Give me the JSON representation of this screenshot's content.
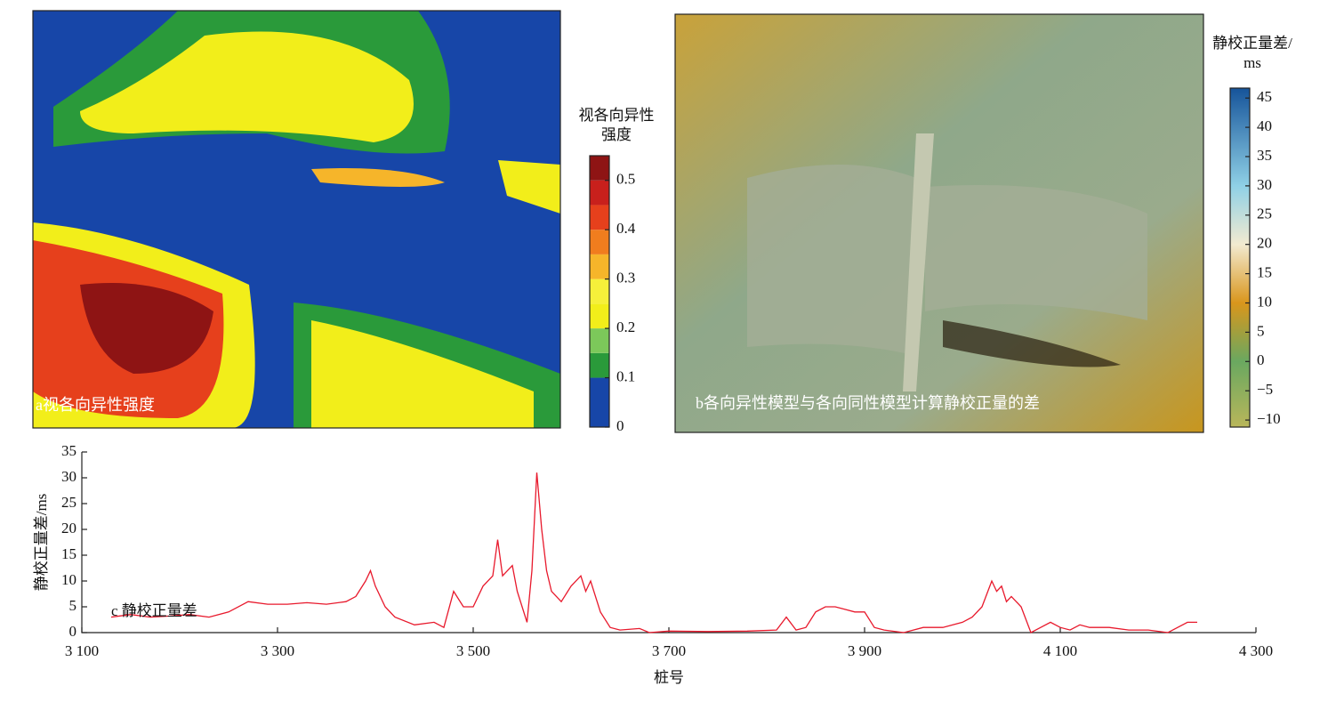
{
  "chart_data": [
    {
      "type": "map",
      "label": "a视各向异性强度",
      "colorbar": {
        "title": [
          "视各向异性",
          "强度"
        ],
        "clim": [
          0,
          0.55
        ],
        "bounds": [
          0,
          0.1,
          0.15,
          0.2,
          0.25,
          0.3,
          0.35,
          0.4,
          0.45,
          0.5,
          0.55
        ],
        "colors": [
          "#1746a8",
          "#2a9a3a",
          "#7cc85a",
          "#f2ee1a",
          "#f6f03a",
          "#f6b52a",
          "#f07d1e",
          "#e6401c",
          "#c8201c",
          "#8e1414"
        ],
        "ticks": [
          0,
          0.1,
          0.2,
          0.3,
          0.4,
          0.5
        ]
      }
    },
    {
      "type": "map",
      "label": "b各向异性模型与各向同性模型计算静校正量的差",
      "colorbar": {
        "title": [
          "静校正量差/",
          "ms"
        ],
        "clim": [
          -11.2,
          46.7
        ],
        "stops": [
          {
            "value": -11.2,
            "color": "#b9b65a"
          },
          {
            "value": 0,
            "color": "#6aa860"
          },
          {
            "value": 10,
            "color": "#d9961c"
          },
          {
            "value": 20,
            "color": "#f2ead0"
          },
          {
            "value": 30,
            "color": "#8fd0e6"
          },
          {
            "value": 46.7,
            "color": "#16549a"
          }
        ],
        "ticks": [
          45,
          40,
          35,
          30,
          25,
          20,
          15,
          10,
          5,
          0,
          {
            "value": -5,
            "label": "−5"
          },
          {
            "value": -10,
            "label": "−10"
          }
        ]
      }
    },
    {
      "type": "line",
      "annotation": "c 静校正量差",
      "x_label": "桩号",
      "y_label": "静校正量差/ms",
      "xlim": [
        3100,
        4300
      ],
      "ylim": [
        0,
        35
      ],
      "xticks": [
        {
          "value": 3100,
          "label": "3 100"
        },
        {
          "value": 3300,
          "label": "3 300"
        },
        {
          "value": 3500,
          "label": "3 500"
        },
        {
          "value": 3700,
          "label": "3 700"
        },
        {
          "value": 3900,
          "label": "3 900"
        },
        {
          "value": 4100,
          "label": "4 100"
        },
        {
          "value": 4300,
          "label": "4 300"
        }
      ],
      "yticks": [
        0,
        5,
        10,
        15,
        20,
        25,
        30,
        35
      ],
      "x": [
        3130,
        3150,
        3170,
        3190,
        3210,
        3230,
        3250,
        3270,
        3290,
        3310,
        3330,
        3350,
        3370,
        3380,
        3390,
        3395,
        3400,
        3410,
        3420,
        3440,
        3460,
        3470,
        3480,
        3490,
        3500,
        3510,
        3520,
        3525,
        3530,
        3540,
        3545,
        3550,
        3555,
        3560,
        3565,
        3570,
        3575,
        3580,
        3590,
        3600,
        3610,
        3615,
        3620,
        3630,
        3640,
        3650,
        3670,
        3680,
        3700,
        3740,
        3780,
        3810,
        3820,
        3830,
        3840,
        3850,
        3860,
        3870,
        3880,
        3890,
        3900,
        3910,
        3920,
        3940,
        3960,
        3980,
        4000,
        4010,
        4020,
        4030,
        4035,
        4040,
        4045,
        4050,
        4060,
        4070,
        4080,
        4090,
        4100,
        4110,
        4120,
        4130,
        4150,
        4170,
        4190,
        4210,
        4220,
        4230,
        4240
      ],
      "series": [
        {
          "name": "静校正量差",
          "color": "#e8192c",
          "values": [
            3,
            3.5,
            3,
            3.2,
            3.5,
            3,
            4,
            6,
            5.5,
            5.5,
            5.8,
            5.5,
            6,
            7,
            10,
            12,
            9,
            5,
            3,
            1.5,
            2,
            1,
            8,
            5,
            5,
            9,
            11,
            18,
            11,
            13,
            8,
            5,
            2,
            12,
            31,
            20,
            12,
            8,
            6,
            9,
            11,
            8,
            10,
            4,
            1,
            0.5,
            0.8,
            0,
            0.3,
            0.2,
            0.3,
            0.5,
            3,
            0.5,
            1,
            4,
            5,
            5,
            4.5,
            4,
            4,
            1,
            0.5,
            0,
            1,
            1,
            2,
            3,
            5,
            10,
            8,
            9,
            6,
            7,
            5,
            0,
            1,
            2,
            1,
            0.5,
            1.5,
            1,
            1,
            0.5,
            0.5,
            0,
            1,
            2,
            2
          ]
        }
      ]
    }
  ]
}
